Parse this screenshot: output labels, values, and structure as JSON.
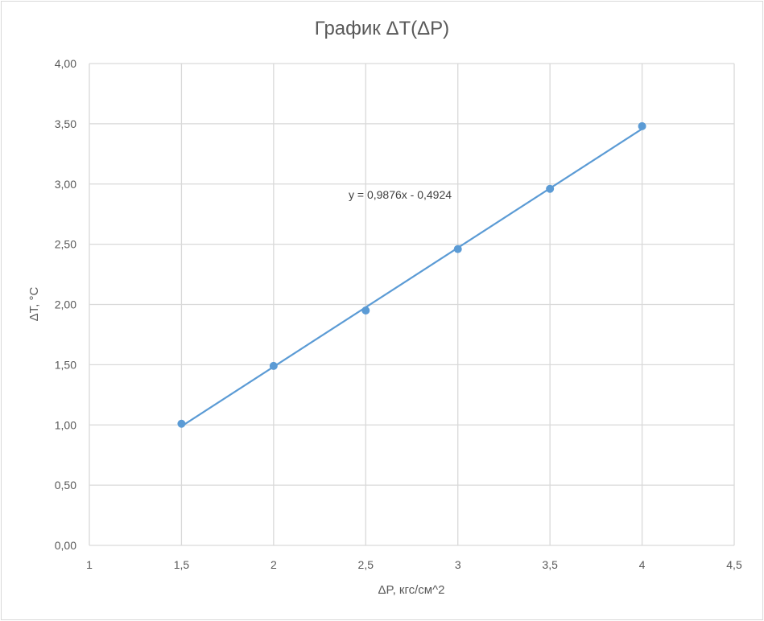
{
  "chart_data": {
    "type": "scatter",
    "title": "График ΔT(ΔP)",
    "xlabel": "ΔP, кгс/см^2",
    "ylabel": "ΔT, °C",
    "xlim": [
      1,
      4.5
    ],
    "ylim": [
      0,
      4
    ],
    "x_ticks": [
      "1",
      "1,5",
      "2",
      "2,5",
      "3",
      "3,5",
      "4",
      "4,5"
    ],
    "y_ticks": [
      "0,00",
      "0,50",
      "1,00",
      "1,50",
      "2,00",
      "2,50",
      "3,00",
      "3,50",
      "4,00"
    ],
    "grid": true,
    "series": [
      {
        "x": [
          1.5,
          2,
          2.5,
          3,
          3.5,
          4
        ],
        "y": [
          1.01,
          1.49,
          1.95,
          2.46,
          2.96,
          3.48
        ],
        "color": "#5b9bd5"
      }
    ],
    "trendline": {
      "slope": 0.9876,
      "intercept": -0.4924,
      "label": "y = 0,9876x - 0,4924",
      "color": "#5b9bd5"
    }
  }
}
